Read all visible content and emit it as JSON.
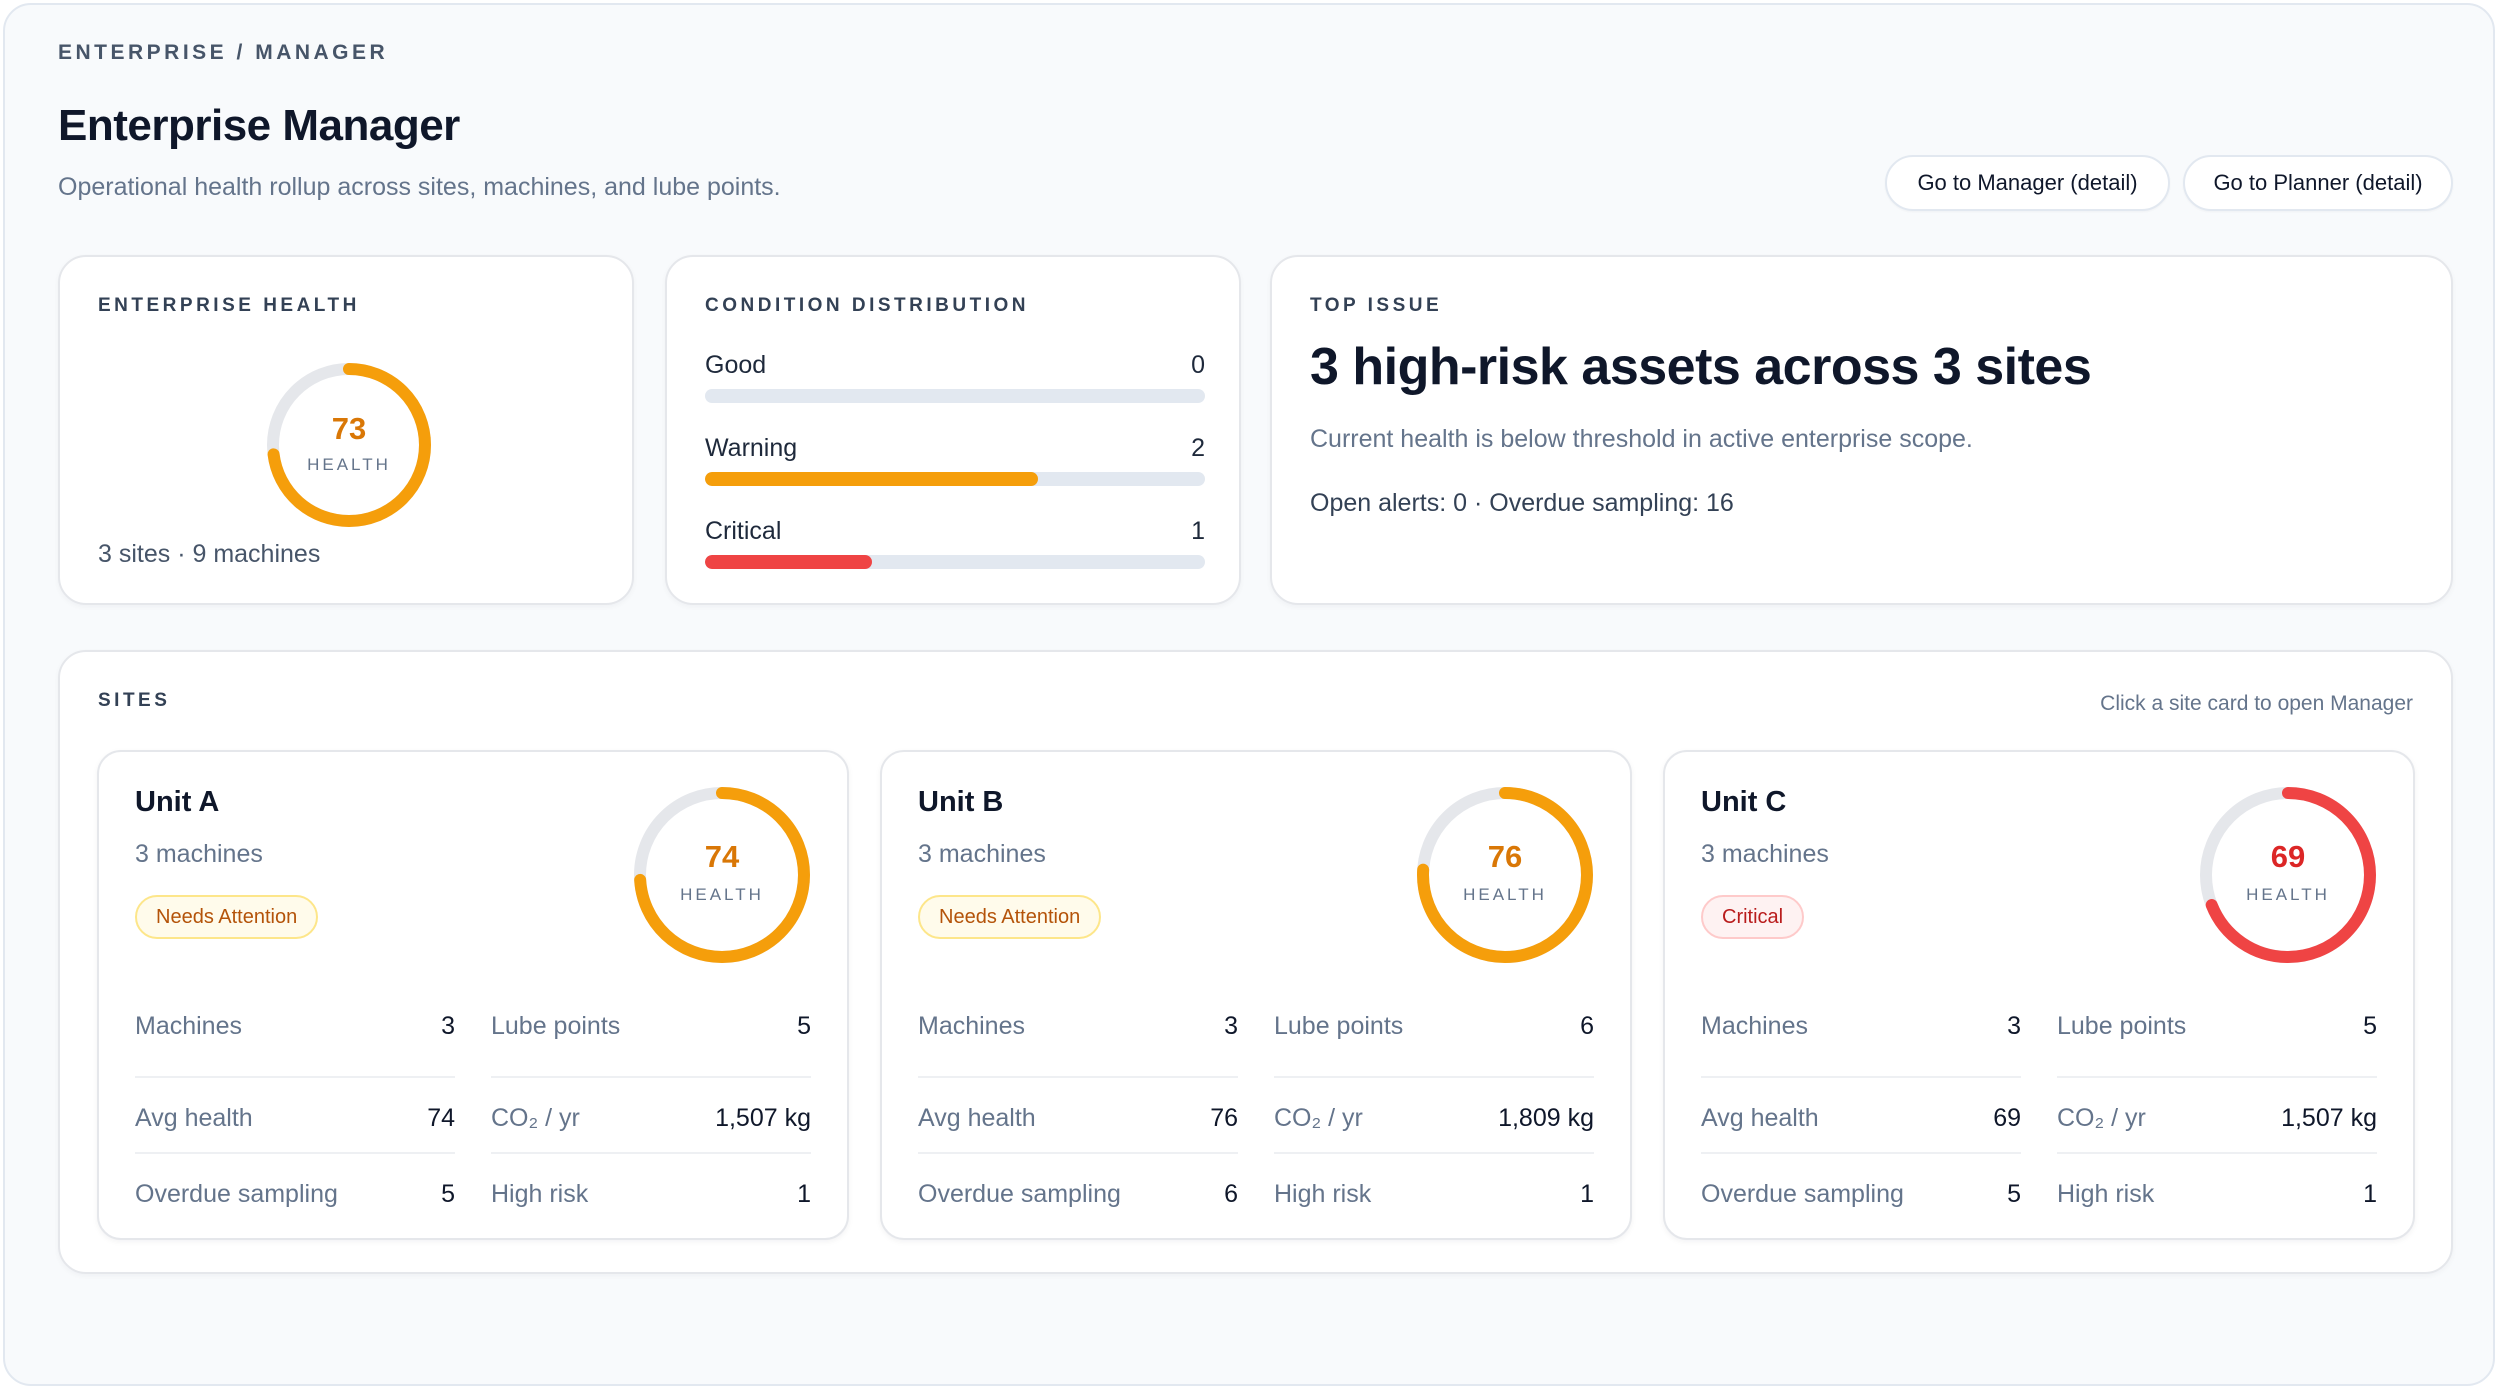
{
  "breadcrumb": "ENTERPRISE / MANAGER",
  "title": "Enterprise Manager",
  "subtitle": "Operational health rollup across sites, machines, and lube points.",
  "actions": {
    "manager_label": "Go to Manager (detail)",
    "planner_label": "Go to Planner (detail)"
  },
  "enterprise_health": {
    "label": "ENTERPRISE HEALTH",
    "value": "73",
    "caption": "HEALTH",
    "summary": "3 sites · 9 machines"
  },
  "condition_distribution": {
    "label": "CONDITION DISTRIBUTION",
    "rows": [
      {
        "label": "Good",
        "count": "0"
      },
      {
        "label": "Warning",
        "count": "2"
      },
      {
        "label": "Critical",
        "count": "1"
      }
    ]
  },
  "top_issue": {
    "label": "TOP ISSUE",
    "headline": "3 high-risk assets across 3 sites",
    "description": "Current health is below threshold in active enterprise scope.",
    "stats": "Open alerts: 0 · Overdue sampling: 16"
  },
  "sites": {
    "label": "SITES",
    "hint": "Click a site card to open Manager",
    "items": [
      {
        "name": "Unit A",
        "machines_text": "3 machines",
        "badge": "Needs Attention",
        "health": "74",
        "health_caption": "HEALTH",
        "metrics": {
          "machines_label": "Machines",
          "machines": "3",
          "lube_label": "Lube points",
          "lube": "5",
          "avg_label": "Avg health",
          "avg": "74",
          "co2_label": "CO₂ / yr",
          "co2": "1,507 kg",
          "overdue_label": "Overdue sampling",
          "overdue": "5",
          "risk_label": "High risk",
          "risk": "1"
        }
      },
      {
        "name": "Unit B",
        "machines_text": "3 machines",
        "badge": "Needs Attention",
        "health": "76",
        "health_caption": "HEALTH",
        "metrics": {
          "machines_label": "Machines",
          "machines": "3",
          "lube_label": "Lube points",
          "lube": "6",
          "avg_label": "Avg health",
          "avg": "76",
          "co2_label": "CO₂ / yr",
          "co2": "1,809 kg",
          "overdue_label": "Overdue sampling",
          "overdue": "6",
          "risk_label": "High risk",
          "risk": "1"
        }
      },
      {
        "name": "Unit C",
        "machines_text": "3 machines",
        "badge": "Critical",
        "health": "69",
        "health_caption": "HEALTH",
        "metrics": {
          "machines_label": "Machines",
          "machines": "3",
          "lube_label": "Lube points",
          "lube": "5",
          "avg_label": "Avg health",
          "avg": "69",
          "co2_label": "CO₂ / yr",
          "co2": "1,507 kg",
          "overdue_label": "Overdue sampling",
          "overdue": "5",
          "risk_label": "High risk",
          "risk": "1"
        }
      }
    ]
  },
  "colors": {
    "warning": "#f59e0b",
    "critical": "#ef4444",
    "good": "#22c55e",
    "track": "#e5e7eb"
  }
}
